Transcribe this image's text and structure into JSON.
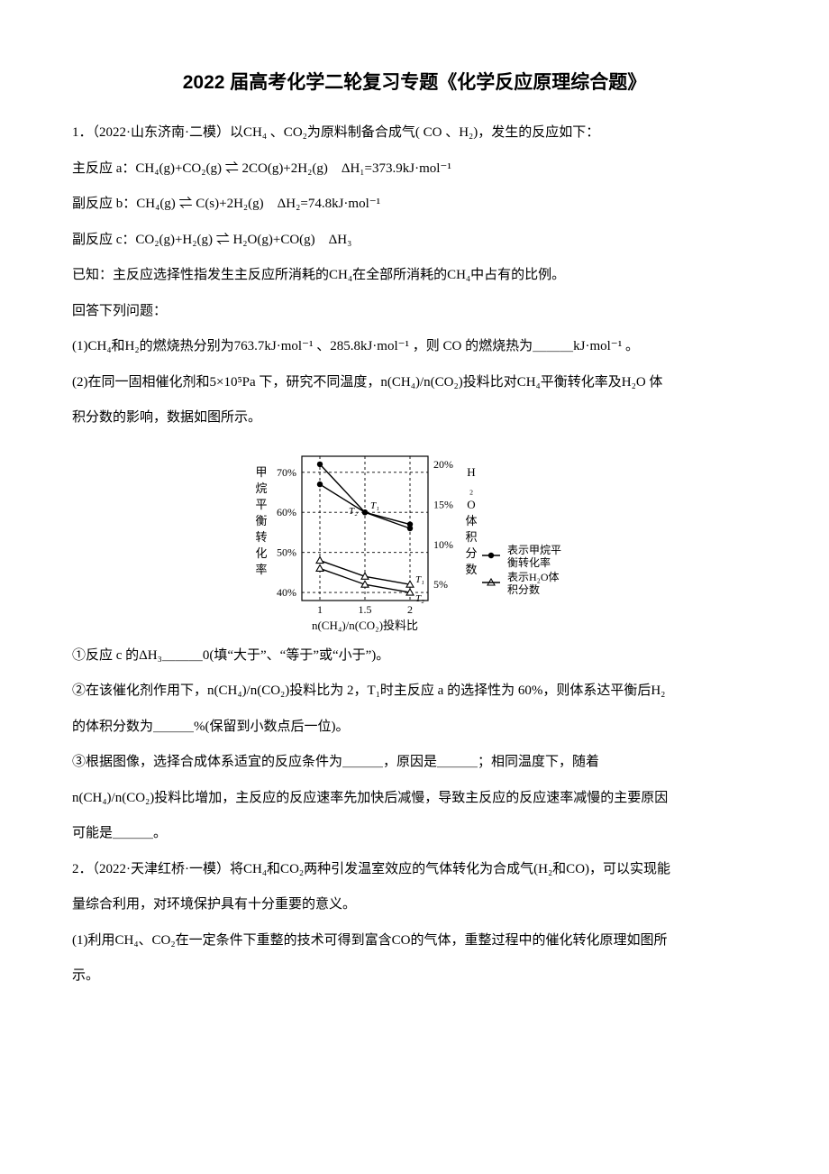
{
  "title": "2022 届高考化学二轮复习专题《化学反应原理综合题》",
  "q1": {
    "intro": "1．（2022·山东济南·二模）以CH₄ 、CO₂为原料制备合成气( CO 、H₂)，发生的反应如下：",
    "eq_a": "主反应 a：CH₄(g)+CO₂(g) ⇌ 2CO(g)+2H₂(g)　ΔH₁=373.9kJ·mol⁻¹",
    "eq_b": "副反应 b：CH₄(g) ⇌ C(s)+2H₂(g)　ΔH₂=74.8kJ·mol⁻¹",
    "eq_c": "副反应 c：CO₂(g)+H₂(g) ⇌ H₂O(g)+CO(g)　ΔH₃",
    "known": "已知：主反应选择性指发生主反应所消耗的CH₄在全部所消耗的CH₄中占有的比例。",
    "answer_prompt": "回答下列问题：",
    "p1": "(1)CH₄和H₂的燃烧热分别为763.7kJ·mol⁻¹ 、285.8kJ·mol⁻¹ ，则 CO 的燃烧热为＿＿＿kJ·mol⁻¹ 。",
    "p2a": "(2)在同一固相催化剂和5×10⁵Pa 下，研究不同温度，n(CH₄)/n(CO₂)投料比对CH₄平衡转化率及H₂O 体",
    "p2b": "积分数的影响，数据如图所示。",
    "s1": "①反应 c 的ΔH₃＿＿＿0(填“大于”、“等于”或“小于”)。",
    "s2a": "②在该催化剂作用下，n(CH₄)/n(CO₂)投料比为 2，T₁时主反应 a 的选择性为 60%，则体系达平衡后H₂",
    "s2b": "的体积分数为＿＿＿%(保留到小数点后一位)。",
    "s3a": "③根据图像，选择合成体系适宜的反应条件为＿＿＿，原因是＿＿＿；相同温度下，随着",
    "s3b": "n(CH₄)/n(CO₂)投料比增加，主反应的反应速率先加快后减慢，导致主反应的反应速率减慢的主要原因",
    "s3c": "可能是＿＿＿。"
  },
  "q2": {
    "intro_a": "2．（2022·天津红桥·一模）将CH₄和CO₂两种引发温室效应的气体转化为合成气(H₂和CO)，可以实现能",
    "intro_b": "量综合利用，对环境保护具有十分重要的意义。",
    "p1a": "(1)利用CH₄、CO₂在一定条件下重整的技术可得到富含CO的气体，重整过程中的催化转化原理如图所",
    "p1b": "示。"
  },
  "chart": {
    "y_left_label": "甲烷平衡转化率",
    "y_right_label": "H₂O体积分数",
    "x_label": "n(CH₄)/n(CO₂)投料比",
    "x_ticks": [
      "1",
      "1.5",
      "2"
    ],
    "y_left_ticks": [
      "40%",
      "50%",
      "60%",
      "70%"
    ],
    "y_right_ticks": [
      "5%",
      "10%",
      "15%",
      "20%"
    ],
    "legend": {
      "conv": "表示甲烷平衡转化率",
      "h2o": "表示H₂O体积分数"
    },
    "series_conv": {
      "T1": [
        72,
        60,
        57
      ],
      "T2": [
        67,
        60,
        56
      ],
      "color": "#000000",
      "marker": "dot"
    },
    "series_h2o": {
      "T1": [
        8,
        6,
        5
      ],
      "T2": [
        7,
        5,
        4
      ],
      "color": "#000000",
      "marker": "triangle"
    },
    "point_labels": {
      "T1": "T₁",
      "T2": "T₂"
    },
    "colors": {
      "axis": "#000000",
      "grid": "#000000",
      "dash": "3,3",
      "bg": "#ffffff"
    },
    "font": {
      "axis_pt": 12,
      "label_pt": 13
    },
    "ylim_left": [
      38,
      74
    ],
    "ylim_right": [
      3,
      21
    ],
    "xlim": [
      0.8,
      2.2
    ]
  }
}
